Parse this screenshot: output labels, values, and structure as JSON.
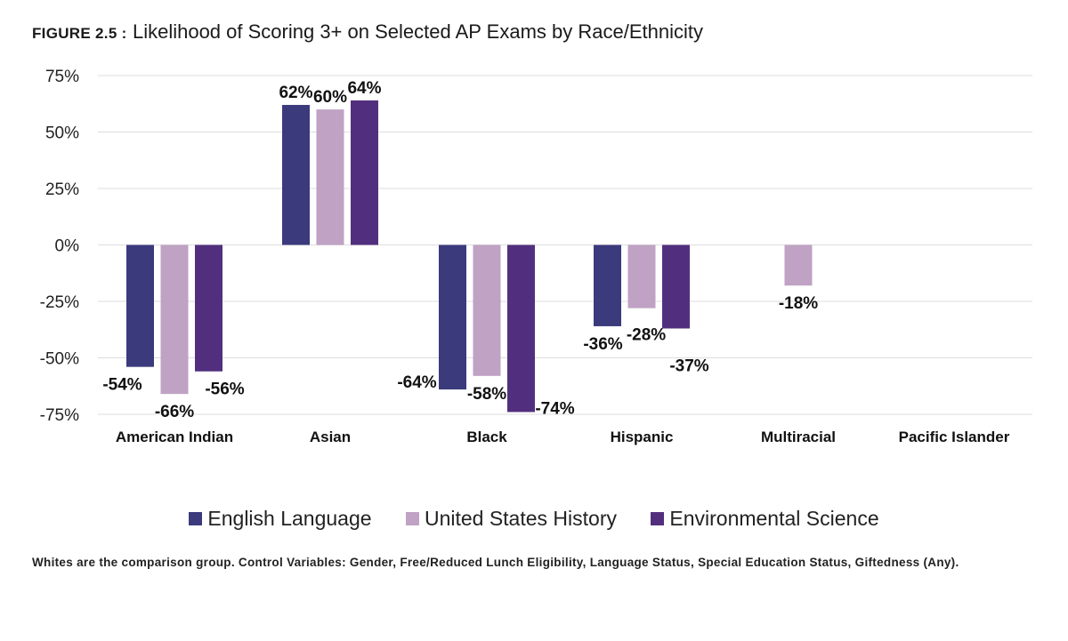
{
  "title": {
    "figure_label": "FIGURE 2.5 :",
    "text": "Likelihood of Scoring 3+ on Selected AP Exams by Race/Ethnicity"
  },
  "footnote": "Whites are the comparison group. Control Variables: Gender, Free/Reduced Lunch Eligibility, Language Status, Special Education Status, Giftedness (Any).",
  "chart_data": {
    "type": "bar",
    "title": "Likelihood of Scoring 3+ on Selected AP Exams by Race/Ethnicity",
    "xlabel": "",
    "ylabel": "",
    "ylim": [
      -75,
      75
    ],
    "yticks": [
      75,
      50,
      25,
      0,
      -25,
      -50,
      -75
    ],
    "ytick_labels": [
      "75%",
      "50%",
      "25%",
      "0%",
      "-25%",
      "-50%",
      "-75%"
    ],
    "grid": true,
    "legend_position": "bottom",
    "categories": [
      "American Indian",
      "Asian",
      "Black",
      "Hispanic",
      "Multiracial",
      "Pacific Islander"
    ],
    "series": [
      {
        "name": "English Language",
        "color": "#3b3a7c",
        "values": [
          -54,
          62,
          -64,
          -36,
          null,
          null
        ],
        "labels": [
          "-54%",
          "62%",
          "-64%",
          "-36%",
          "",
          ""
        ]
      },
      {
        "name": "United States History",
        "color": "#bfa2c4",
        "values": [
          -66,
          60,
          -58,
          -28,
          -18,
          null
        ],
        "labels": [
          "-66%",
          "60%",
          "-58%",
          "-28%",
          "-18%",
          ""
        ]
      },
      {
        "name": "Environmental Science",
        "color": "#522f7e",
        "values": [
          -56,
          64,
          -74,
          -37,
          null,
          null
        ],
        "labels": [
          "-56%",
          "64%",
          "-74%",
          "-37%",
          "",
          ""
        ]
      }
    ]
  }
}
